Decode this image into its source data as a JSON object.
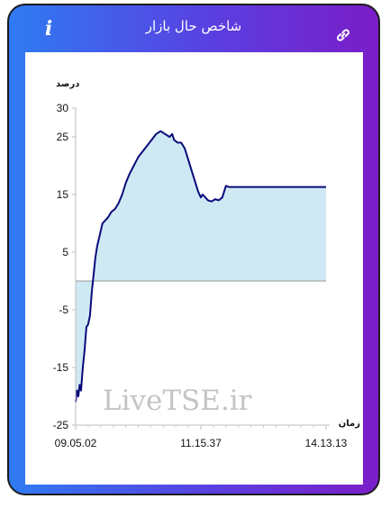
{
  "header": {
    "title": "شاخص حال بازار",
    "info_icon": "info-icon",
    "link_icon": "link-icon"
  },
  "colors": {
    "gradient_start": "#2f7bf2",
    "gradient_end": "#7b1dc8",
    "line": "#0a0a7a",
    "fill": "#cfe9f4"
  },
  "watermark": "LiveTSE.ir",
  "chart_data": {
    "type": "area",
    "title": "",
    "ylabel": "درصد",
    "xlabel": "زمان",
    "ylim": [
      -25,
      30
    ],
    "yticks": [
      "30",
      "25",
      "15",
      "5",
      "-5",
      "-15",
      "-25"
    ],
    "yticks_values": [
      30,
      25,
      15,
      5,
      -5,
      -15,
      -25
    ],
    "xticks": [
      "09.05.02",
      "11.15.37",
      "14.13.13"
    ],
    "grid": false,
    "series": [
      {
        "x": [
          0,
          0.8,
          1.5,
          3,
          4.5,
          6,
          8,
          10,
          12,
          14,
          16,
          18,
          20,
          22,
          24,
          27,
          30,
          33,
          36,
          40,
          44,
          48,
          52,
          56,
          60,
          65,
          70,
          75,
          80,
          85,
          90,
          95,
          100,
          105,
          108,
          110,
          114,
          118,
          122,
          126,
          130,
          134,
          137,
          140,
          142,
          145,
          148,
          152,
          156,
          160,
          164,
          168,
          172,
          174,
          176,
          178,
          180,
          183,
          186,
          190,
          194,
          198,
          201,
          202,
          204,
          210,
          220,
          240,
          260,
          280
        ],
        "y": [
          -21,
          -20,
          -19,
          -20,
          -18,
          -19,
          -15,
          -12,
          -8,
          -7.5,
          -6,
          -2,
          1,
          4,
          6,
          8,
          10,
          10.5,
          11,
          12,
          12.5,
          13.5,
          15,
          17,
          18.5,
          20,
          21.5,
          22.5,
          23.5,
          24.5,
          25.5,
          26,
          25.5,
          25,
          25.5,
          24.5,
          24,
          24,
          23,
          21,
          19,
          17,
          15.5,
          14.5,
          15,
          14.5,
          14,
          13.8,
          14.2,
          14,
          14.5,
          16.5,
          16.3,
          16.3,
          16.3,
          16.3,
          16.3,
          16.3,
          16.3,
          16.3,
          16.3,
          16.3,
          16.3,
          16.3,
          16.3,
          16.3,
          16.3,
          16.3,
          16.3,
          16.3
        ]
      }
    ]
  }
}
